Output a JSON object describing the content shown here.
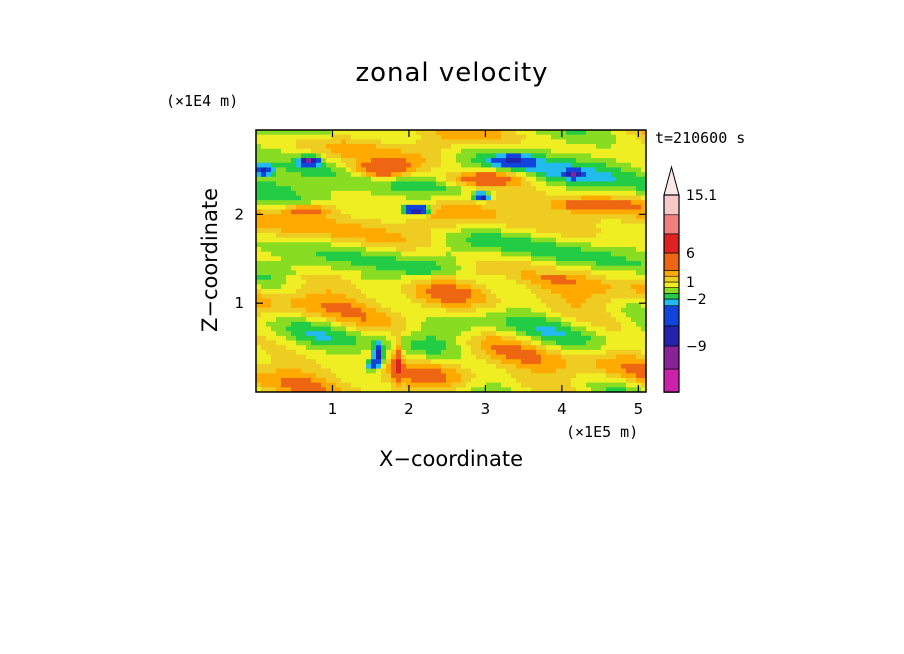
{
  "title": "zonal velocity",
  "time_label": "t=210600 s",
  "chart_data": {
    "type": "heatmap",
    "title": "zonal velocity",
    "xlabel": "X−coordinate",
    "ylabel": "Z−coordinate",
    "x_unit": "(×1E5 m)",
    "y_unit": "(×1E4 m)",
    "xlim": [
      0,
      5.1
    ],
    "ylim": [
      0,
      2.95
    ],
    "x_ticks": [
      "1",
      "2",
      "3",
      "4",
      "5"
    ],
    "x_tick_values": [
      1,
      2,
      3,
      4,
      5
    ],
    "y_ticks": [
      "1",
      "2"
    ],
    "y_tick_values": [
      1,
      2
    ],
    "colorbar_labels": [
      "15.1",
      "6",
      "1",
      "−2",
      "−9"
    ],
    "colorbar_label_values": [
      15.1,
      6,
      1,
      -2,
      -9
    ],
    "colorbar_levels": [
      -15,
      -12,
      -9,
      -6,
      -3,
      -2,
      -1,
      0,
      1,
      2,
      3,
      6,
      9,
      12,
      15.1
    ],
    "colorbar_colors": [
      "#ee22aa",
      "#cc22aa",
      "#882299",
      "#2222aa",
      "#1144dd",
      "#22bbee",
      "#22cc44",
      "#88dd22",
      "#eeee22",
      "#eecc22",
      "#ffaa00",
      "#ee6611",
      "#dd2222",
      "#f08080",
      "#f8c8c8"
    ],
    "dominant_values_by_height": [
      {
        "z": 0.25,
        "value": 0.5
      },
      {
        "z": 0.8,
        "value": -0.5
      },
      {
        "z": 1.4,
        "value": 0.5
      },
      {
        "z": 1.9,
        "value": 1.5
      },
      {
        "z": 2.5,
        "value": -1.5
      }
    ]
  }
}
